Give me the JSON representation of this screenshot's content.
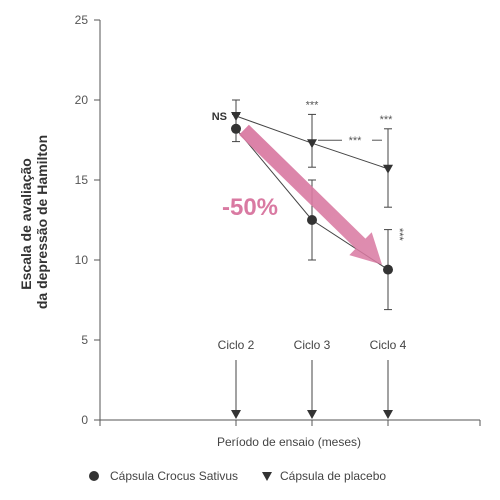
{
  "chart_data": {
    "type": "line",
    "ylabel_lines": [
      "Escala de avaliação",
      "da depressão de Hamilton"
    ],
    "xlabel": "Período de ensaio (meses)",
    "ylim": [
      0,
      25
    ],
    "yticks": [
      0,
      5,
      10,
      15,
      20,
      25
    ],
    "xlim": [
      0,
      5
    ],
    "categories": [
      "Ciclo 2",
      "Ciclo 3",
      "Ciclo 4"
    ],
    "x": [
      2,
      3,
      4
    ],
    "series": [
      {
        "name": "Cápsula Crocus Sativus",
        "marker": "circle",
        "values": [
          18.2,
          12.5,
          9.4
        ],
        "err_low": [
          17.4,
          10.0,
          6.9
        ],
        "err_high": [
          19.1,
          15.0,
          11.9
        ]
      },
      {
        "name": "Cápsula de placebo",
        "marker": "triangle-down",
        "values": [
          19.0,
          17.3,
          15.7
        ],
        "err_low": [
          18.2,
          15.8,
          13.3
        ],
        "err_high": [
          20.0,
          19.1,
          18.2
        ]
      }
    ],
    "annotations": {
      "ns": "NS",
      "stars": "***",
      "percent": "-50%"
    },
    "colors": {
      "arrow": "#d97aa2",
      "percent": "#d97aa2",
      "marker": "#333333",
      "line": "#444444"
    },
    "grid": false,
    "legend_position": "bottom"
  }
}
